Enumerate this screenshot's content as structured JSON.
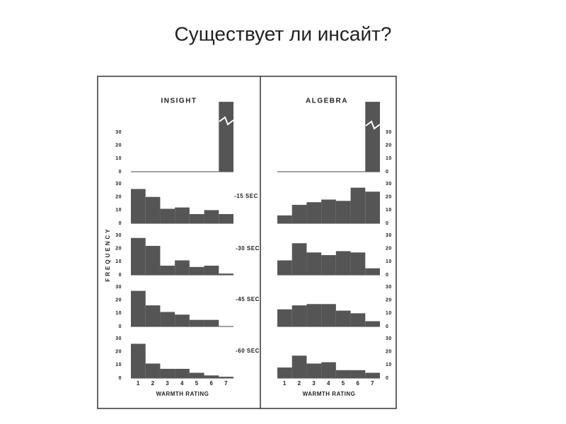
{
  "title": "Существует ли инсайт?",
  "columns": [
    "INSIGHT",
    "ALGEBRA"
  ],
  "row_labels": [
    "-15 SEC",
    "-30 SEC",
    "-45 SEC",
    "-60 SEC"
  ],
  "y_axis_label": "FREQUENCY",
  "x_axis_label": "WARMTH RATING",
  "chart_data": [
    {
      "type": "bar",
      "values": [
        0,
        0,
        0,
        0,
        0,
        0,
        53
      ],
      "color": "#555555",
      "ylim": [
        0,
        53
      ],
      "yticks": [
        0,
        10,
        20,
        30
      ]
    },
    {
      "type": "bar",
      "values": [
        26,
        20,
        11,
        12,
        7,
        10,
        7
      ],
      "color": "#555555",
      "ylim": [
        0,
        30
      ],
      "yticks": [
        0,
        10,
        20,
        30
      ]
    },
    {
      "type": "bar",
      "values": [
        28,
        22,
        7,
        11,
        6,
        7,
        1
      ],
      "color": "#555555",
      "ylim": [
        0,
        30
      ],
      "yticks": [
        0,
        10,
        20,
        30
      ]
    },
    {
      "type": "bar",
      "values": [
        27,
        16,
        11,
        9,
        5,
        5,
        0
      ],
      "color": "#555555",
      "ylim": [
        0,
        30
      ],
      "yticks": [
        0,
        10,
        20,
        30
      ]
    },
    {
      "type": "bar",
      "categories": [
        "1",
        "2",
        "3",
        "4",
        "5",
        "6",
        "7"
      ],
      "values": [
        26,
        11,
        7,
        7,
        4,
        2,
        1
      ],
      "color": "#555555",
      "ylim": [
        0,
        30
      ],
      "yticks": [
        0,
        10,
        20,
        30
      ]
    },
    {
      "type": "bar",
      "values": [
        0,
        0,
        0,
        0,
        0,
        0,
        53
      ],
      "color": "#555555",
      "ylim": [
        0,
        53
      ],
      "yticks": [
        0,
        10,
        20,
        30
      ]
    },
    {
      "type": "bar",
      "values": [
        6,
        14,
        16,
        18,
        17,
        27,
        24
      ],
      "color": "#555555",
      "ylim": [
        0,
        30
      ],
      "yticks": [
        0,
        10,
        20,
        30
      ]
    },
    {
      "type": "bar",
      "values": [
        11,
        24,
        17,
        15,
        18,
        17,
        5
      ],
      "color": "#555555",
      "ylim": [
        0,
        30
      ],
      "yticks": [
        0,
        10,
        20,
        30
      ]
    },
    {
      "type": "bar",
      "values": [
        13,
        16,
        17,
        17,
        12,
        10,
        4
      ],
      "color": "#555555",
      "ylim": [
        0,
        30
      ],
      "yticks": [
        0,
        10,
        20,
        30
      ]
    },
    {
      "type": "bar",
      "categories": [
        "1",
        "2",
        "3",
        "4",
        "5",
        "6",
        "7"
      ],
      "values": [
        8,
        17,
        11,
        12,
        6,
        6,
        4
      ],
      "color": "#555555",
      "ylim": [
        0,
        30
      ],
      "yticks": [
        0,
        10,
        20,
        30
      ]
    }
  ]
}
